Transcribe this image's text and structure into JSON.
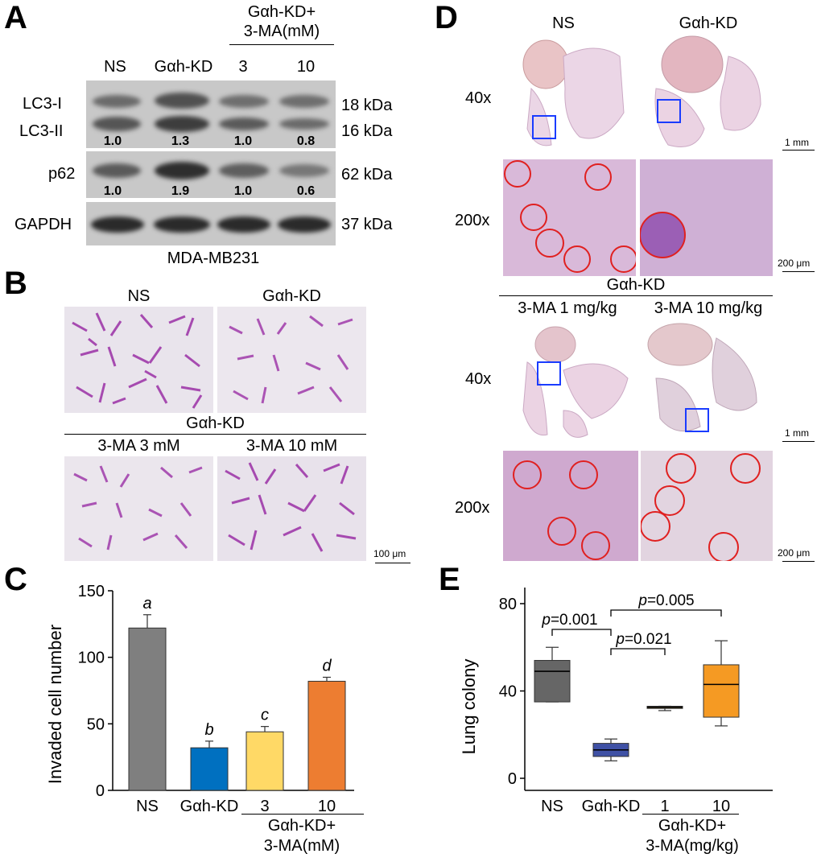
{
  "panels": {
    "A": "A",
    "B": "B",
    "C": "C",
    "D": "D",
    "E": "E"
  },
  "panelA": {
    "header_group": "Gαh-KD+",
    "header_sub": "3-MA(mM)",
    "lanes": [
      "NS",
      "Gαh-KD",
      "3",
      "10"
    ],
    "row_labels": {
      "lc3i": "LC3-I",
      "lc3ii": "LC3-II",
      "p62": "p62",
      "gapdh": "GAPDH"
    },
    "sizes": {
      "lc3i": "18 kDa",
      "lc3ii": "16 kDa",
      "p62": "62 kDa",
      "gapdh": "37 kDa"
    },
    "lc3_ratios": [
      "1.0",
      "1.3",
      "1.0",
      "0.8"
    ],
    "p62_ratios": [
      "1.0",
      "1.9",
      "1.0",
      "0.6"
    ],
    "cell_line": "MDA-MB231"
  },
  "panelB": {
    "top_labels": [
      "NS",
      "Gαh-KD"
    ],
    "group_label": "Gαh-KD",
    "bottom_labels": [
      "3-MA 3 mM",
      "3-MA 10 mM"
    ],
    "scale": "100 μm"
  },
  "panelD": {
    "top_cols": [
      "NS",
      "Gαh-KD"
    ],
    "mag_40": "40x",
    "mag_200": "200x",
    "group_label": "Gαh-KD",
    "bottom_cols": [
      "3-MA 1 mg/kg",
      "3-MA 10 mg/kg"
    ],
    "scale_1mm": "1 mm",
    "scale_200um": "200 μm"
  },
  "colors": {
    "ns": "#7f7f7f",
    "kd": "#0070c0",
    "ma3": "#ffd966",
    "ma10": "#ed7d31",
    "e_ns": "#666666",
    "e_kd": "#3f51a5",
    "e_1": "#ffd966",
    "e_10": "#f59a23",
    "stain": "#9b30a6",
    "circle": "#e02020",
    "box": "#1a3cff"
  },
  "chart_data": [
    {
      "type": "bar",
      "categories": [
        "NS",
        "Gαh-KD",
        "3",
        "10"
      ],
      "values": [
        122,
        32,
        44,
        82
      ],
      "errors": [
        10,
        5,
        4,
        3
      ],
      "letters": [
        "a",
        "b",
        "c",
        "d"
      ],
      "title": "",
      "xlabel": "",
      "ylabel": "Invaded cell number",
      "ylim": [
        0,
        150
      ],
      "yticks": [
        0,
        50,
        100,
        150
      ],
      "group_label": "Gαh-KD+",
      "group_sub": "3-MA(mM)"
    },
    {
      "type": "box",
      "categories": [
        "NS",
        "Gαh-KD",
        "1",
        "10"
      ],
      "boxes": [
        {
          "min": 35,
          "q1": 35,
          "median": 49,
          "q3": 54,
          "max": 60
        },
        {
          "min": 8,
          "q1": 10,
          "median": 13,
          "q3": 16,
          "max": 18
        },
        {
          "min": 31,
          "q1": 32,
          "median": 32.5,
          "q3": 33,
          "max": 33
        },
        {
          "min": 24,
          "q1": 28,
          "median": 43,
          "q3": 52,
          "max": 63
        }
      ],
      "title": "",
      "xlabel": "",
      "ylabel": "Lung colony",
      "ylim": [
        0,
        80
      ],
      "yticks": [
        0,
        40,
        80
      ],
      "pvalues": [
        "p=0.001",
        "p=0.021",
        "p=0.005"
      ],
      "group_label": "Gαh-KD+",
      "group_sub": "3-MA(mg/kg)"
    }
  ]
}
